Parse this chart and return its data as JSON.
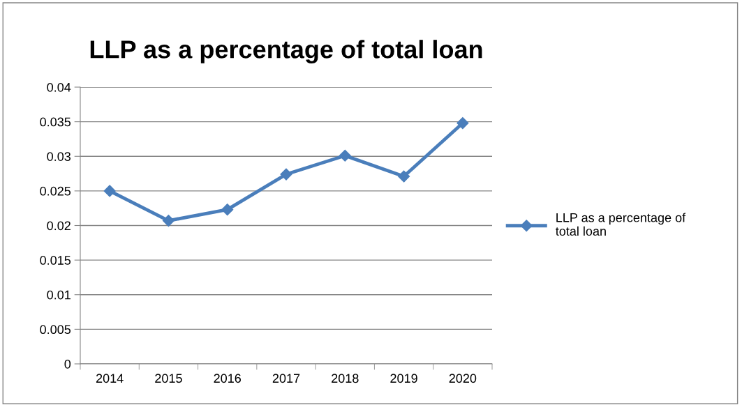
{
  "chart_data": {
    "type": "line",
    "title": "LLP as a percentage of total loan",
    "categories": [
      "2014",
      "2015",
      "2016",
      "2017",
      "2018",
      "2019",
      "2020"
    ],
    "series": [
      {
        "name": "LLP as a percentage of total loan",
        "color": "#4a7ebb",
        "values": [
          0.025,
          0.0207,
          0.0223,
          0.0274,
          0.0301,
          0.0271,
          0.0348
        ]
      }
    ],
    "ylim": [
      0,
      0.04
    ],
    "yticks": [
      0,
      0.005,
      0.01,
      0.015,
      0.02,
      0.025,
      0.03,
      0.035,
      0.04
    ],
    "grid": "y",
    "legend": "right",
    "marker": "diamond",
    "line_style": "solid"
  }
}
